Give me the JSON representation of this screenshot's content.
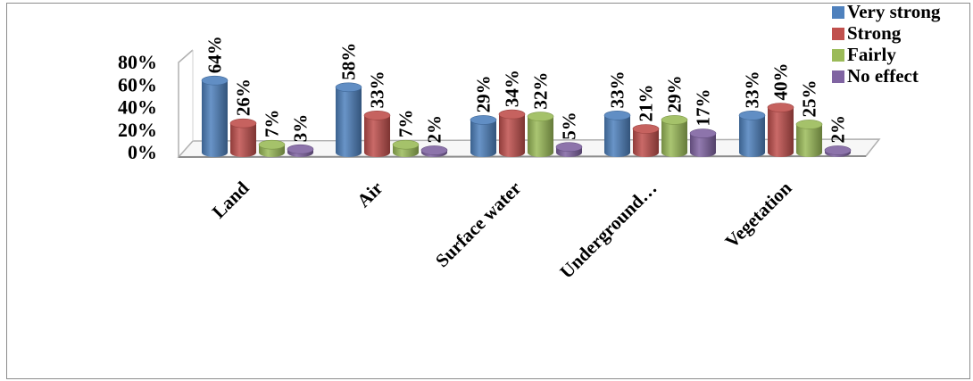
{
  "chart_data": {
    "type": "bar",
    "style": "3d-clustered-cylinder",
    "categories": [
      "Land",
      "Air",
      "Surface water",
      "Underground…",
      "Vegetation"
    ],
    "series": [
      {
        "name": "Very strong",
        "color": "#4F81BD",
        "values": [
          64,
          58,
          29,
          33,
          33
        ],
        "labels": [
          "64%",
          "58%",
          "29%",
          "33%",
          "33%"
        ]
      },
      {
        "name": "Strong",
        "color": "#C0504D",
        "values": [
          26,
          33,
          34,
          21,
          40
        ],
        "labels": [
          "26%",
          "33%",
          "34%",
          "21%",
          "40%"
        ]
      },
      {
        "name": "Fairly",
        "color": "#9BBB59",
        "values": [
          7,
          7,
          32,
          29,
          25
        ],
        "labels": [
          "7%",
          "7%",
          "32%",
          "29%",
          "25%"
        ]
      },
      {
        "name": "No effect",
        "color": "#8064A2",
        "values": [
          3,
          2,
          5,
          17,
          2
        ],
        "labels": [
          "3%",
          "2%",
          "5%",
          "17%",
          "2%"
        ]
      }
    ],
    "y_ticks": [
      "0%",
      "20%",
      "40%",
      "60%",
      "80%"
    ],
    "ylim": [
      0,
      80
    ],
    "legend_position": "top-right",
    "grid": false
  }
}
